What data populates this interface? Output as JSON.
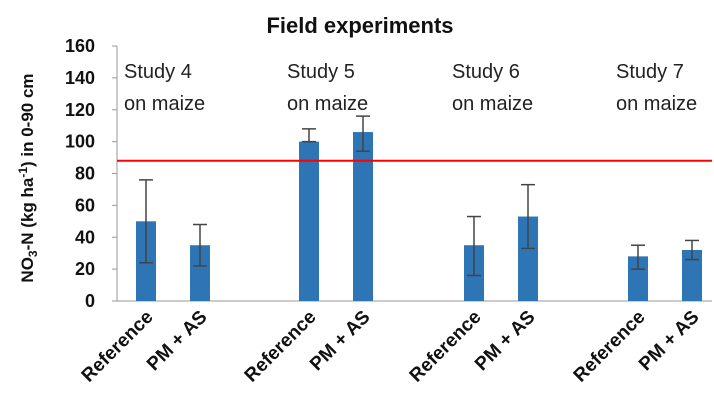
{
  "chart_data": {
    "type": "bar",
    "title": "Field experiments",
    "ylabel_main": "NO",
    "ylabel_sub": "3",
    "ylabel_mid": "-N (kg ha",
    "ylabel_sup": "-1",
    "ylabel_end": ") in 0-90 cm",
    "ylim": [
      0,
      160
    ],
    "yticks": [
      "0",
      "20",
      "40",
      "60",
      "80",
      "100",
      "120",
      "140",
      "160"
    ],
    "bar_color": "#2e75b6",
    "threshold_line": {
      "value": 88,
      "color": "#ff0000"
    },
    "groups": [
      {
        "label_line1": "Study 4",
        "label_line2": "on maize",
        "bars": [
          {
            "category": "Reference",
            "value": 50,
            "err_low": 24,
            "err_high": 76
          },
          {
            "category": "PM + AS",
            "value": 35,
            "err_low": 22,
            "err_high": 48
          }
        ]
      },
      {
        "label_line1": "Study 5",
        "label_line2": "on maize",
        "bars": [
          {
            "category": "Reference",
            "value": 100,
            "err_low": 100,
            "err_high": 108
          },
          {
            "category": "PM + AS",
            "value": 106,
            "err_low": 94,
            "err_high": 116
          }
        ]
      },
      {
        "label_line1": "Study 6",
        "label_line2": "on maize",
        "bars": [
          {
            "category": "Reference",
            "value": 35,
            "err_low": 16,
            "err_high": 53
          },
          {
            "category": "PM + AS",
            "value": 53,
            "err_low": 33,
            "err_high": 73
          }
        ]
      },
      {
        "label_line1": "Study 7",
        "label_line2": "on maize",
        "bars": [
          {
            "category": "Reference",
            "value": 28,
            "err_low": 20,
            "err_high": 35
          },
          {
            "category": "PM + AS",
            "value": 32,
            "err_low": 26,
            "err_high": 38
          }
        ]
      }
    ]
  }
}
